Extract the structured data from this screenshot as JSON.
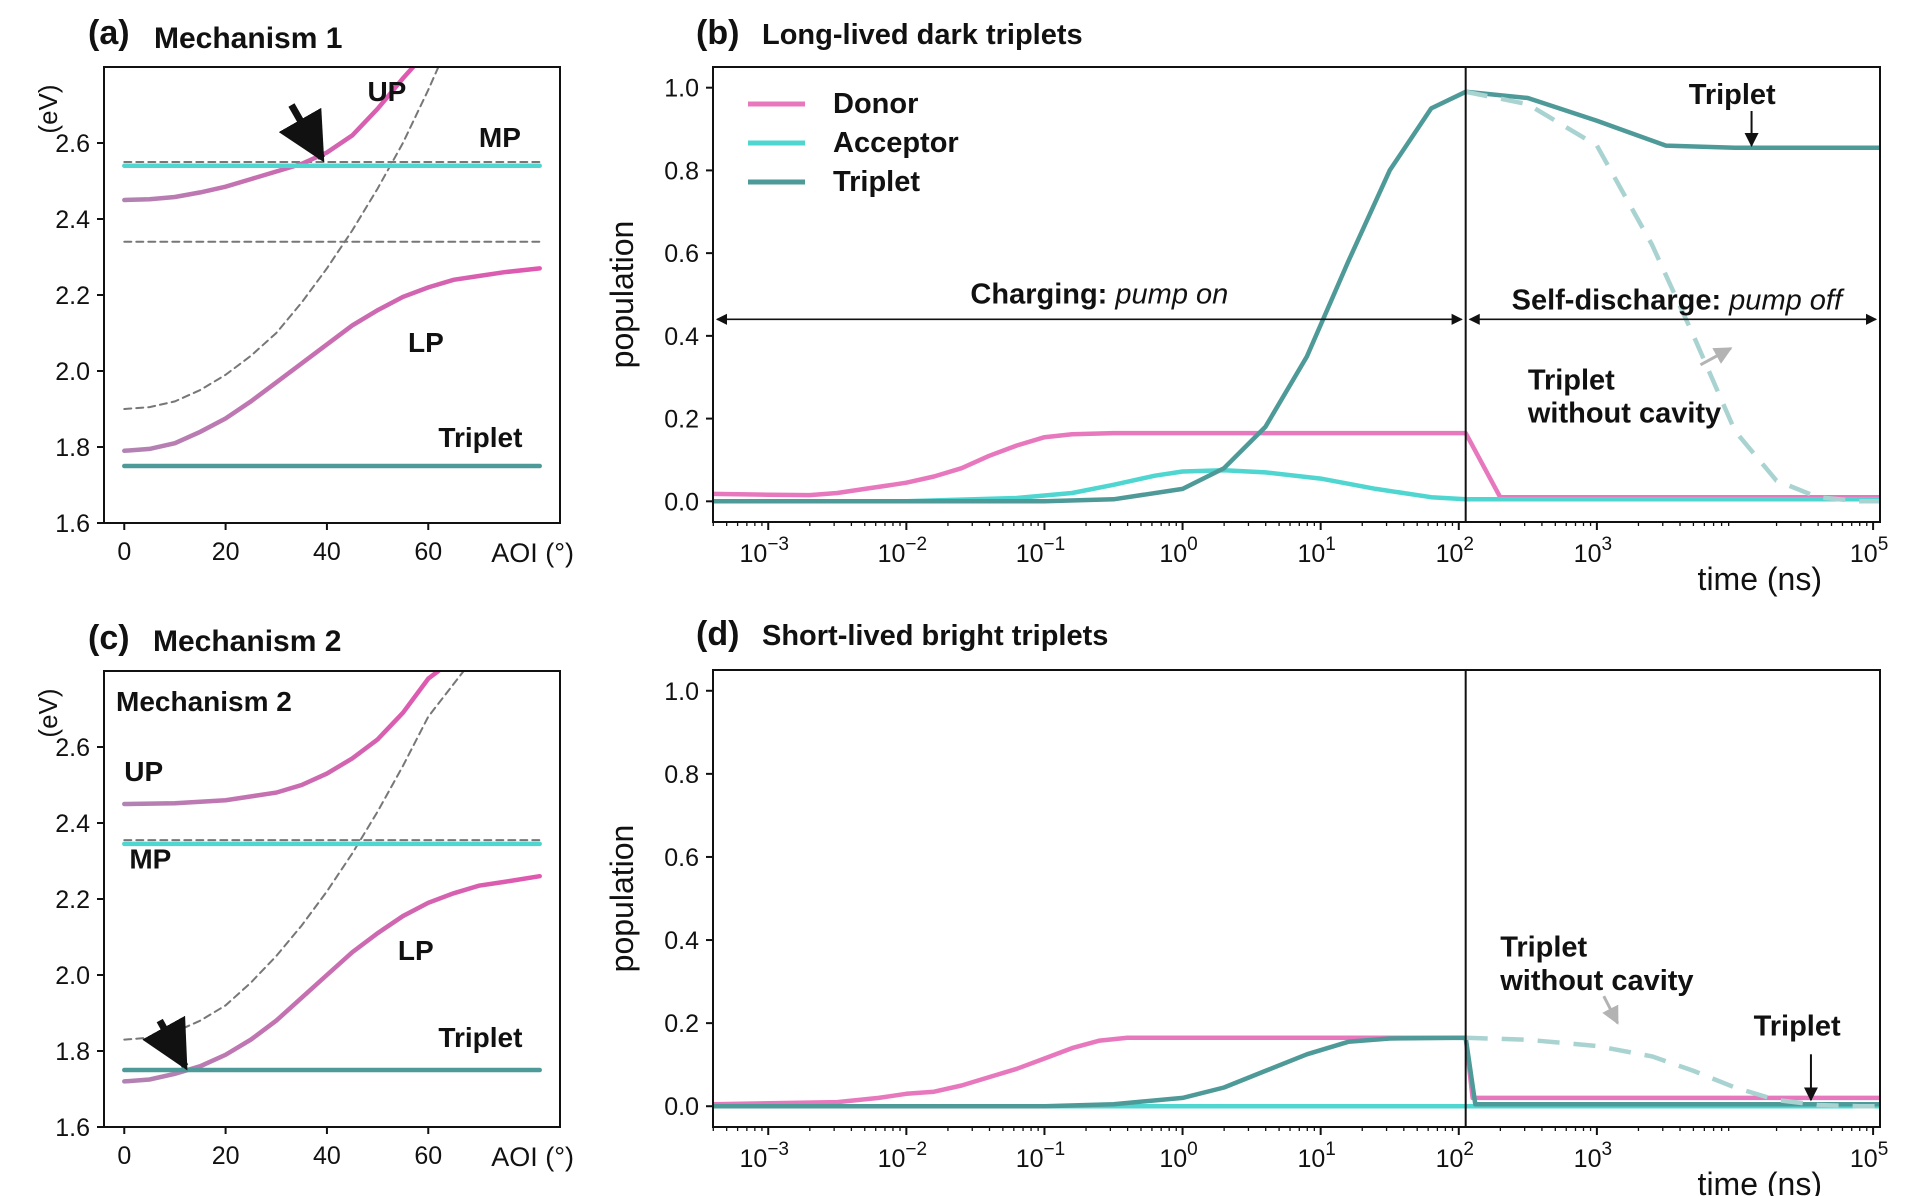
{
  "chart_data": [
    {
      "id": "a",
      "type": "line",
      "panel_label": "(a)",
      "title": "Mechanism 1",
      "xlabel": "AOI (°)",
      "ylabel": "(eV)",
      "xlim": [
        -4,
        86
      ],
      "ylim": [
        1.6,
        2.8
      ],
      "xticks": [
        0,
        20,
        40,
        60
      ],
      "yticks": [
        1.6,
        1.8,
        2.0,
        2.2,
        2.4,
        2.6
      ],
      "series": [
        {
          "name": "UP",
          "style": "pink-purple",
          "x": [
            0,
            5,
            10,
            15,
            20,
            25,
            30,
            35,
            40,
            45,
            50,
            55,
            57
          ],
          "y": [
            2.45,
            2.452,
            2.458,
            2.47,
            2.485,
            2.505,
            2.525,
            2.545,
            2.575,
            2.62,
            2.69,
            2.77,
            2.8
          ]
        },
        {
          "name": "MP",
          "style": "cyan",
          "x": [
            0,
            82
          ],
          "y": [
            2.54,
            2.54
          ]
        },
        {
          "name": "LP",
          "style": "pink-purple",
          "x": [
            0,
            5,
            10,
            15,
            20,
            25,
            30,
            35,
            40,
            45,
            50,
            55,
            60,
            65,
            70,
            75,
            82
          ],
          "y": [
            1.79,
            1.795,
            1.81,
            1.84,
            1.875,
            1.92,
            1.97,
            2.02,
            2.07,
            2.12,
            2.16,
            2.195,
            2.22,
            2.24,
            2.25,
            2.26,
            2.27
          ]
        },
        {
          "name": "Triplet",
          "style": "teal",
          "x": [
            0,
            82
          ],
          "y": [
            1.75,
            1.75
          ]
        },
        {
          "name": "cavity",
          "style": "dashed",
          "x": [
            0,
            5,
            10,
            15,
            20,
            25,
            30,
            35,
            40,
            45,
            50,
            55,
            60,
            62
          ],
          "y": [
            1.9,
            1.905,
            1.92,
            1.95,
            1.99,
            2.04,
            2.1,
            2.18,
            2.27,
            2.37,
            2.48,
            2.6,
            2.74,
            2.8
          ]
        },
        {
          "name": "exciton-1",
          "style": "dashed",
          "x": [
            0,
            82
          ],
          "y": [
            2.55,
            2.55
          ]
        },
        {
          "name": "exciton-2",
          "style": "dashed",
          "x": [
            0,
            82
          ],
          "y": [
            2.34,
            2.34
          ]
        }
      ],
      "annotations": [
        {
          "text": "UP",
          "x": 48,
          "y": 2.71
        },
        {
          "text": "MP",
          "x": 70,
          "y": 2.59
        },
        {
          "text": "LP",
          "x": 56,
          "y": 2.05
        },
        {
          "text": "Triplet",
          "x": 62,
          "y": 1.8
        }
      ],
      "arrow": {
        "from": [
          33,
          2.7
        ],
        "to": [
          39,
          2.56
        ]
      }
    },
    {
      "id": "b",
      "type": "line",
      "panel_label": "(b)",
      "title": "Long-lived dark triplets",
      "xlabel": "time (ns)",
      "ylabel": "population",
      "xscale": "log",
      "xlim_log10": [
        -3.4,
        5.05
      ],
      "ylim": [
        -0.05,
        1.05
      ],
      "xtick_labels": [
        "10",
        "10",
        "10",
        "10",
        "10",
        "10",
        "10",
        "10",
        "10"
      ],
      "xtick_exponents": [
        "−3",
        "−2",
        "−1",
        "0",
        "1",
        "2",
        "3",
        "",
        "5"
      ],
      "xtick_log10": [
        -3,
        -2,
        -1,
        0,
        1,
        2,
        3,
        null,
        5
      ],
      "yticks": [
        0.0,
        0.2,
        0.4,
        0.6,
        0.8,
        1.0
      ],
      "ytick_labels": [
        "0.0",
        "0.2",
        "0.4",
        "0.6",
        "0.8",
        "1.0"
      ],
      "pump_off_log10": 2.05,
      "legend": [
        "Donor",
        "Acceptor",
        "Triplet"
      ],
      "series": [
        {
          "name": "Donor",
          "color": "#e878bd",
          "x_log10": [
            -3.4,
            -3.0,
            -2.7,
            -2.5,
            -2.3,
            -2.1,
            -2.0,
            -1.8,
            -1.6,
            -1.4,
            -1.2,
            -1.0,
            -0.8,
            -0.5,
            0.0,
            1.0,
            2.05,
            2.3,
            2.6,
            3.5,
            5.05
          ],
          "y": [
            0.018,
            0.016,
            0.015,
            0.02,
            0.03,
            0.04,
            0.045,
            0.06,
            0.08,
            0.11,
            0.135,
            0.155,
            0.162,
            0.165,
            0.165,
            0.165,
            0.165,
            0.01,
            0.01,
            0.01,
            0.01
          ]
        },
        {
          "name": "Acceptor",
          "color": "#4fd6d0",
          "x_log10": [
            -3.4,
            -2.0,
            -1.2,
            -0.8,
            -0.5,
            -0.2,
            0.0,
            0.3,
            0.6,
            1.0,
            1.4,
            1.8,
            2.05,
            3.0,
            5.05
          ],
          "y": [
            0.0,
            0.0,
            0.008,
            0.02,
            0.04,
            0.062,
            0.072,
            0.075,
            0.07,
            0.055,
            0.03,
            0.01,
            0.005,
            0.005,
            0.005
          ]
        },
        {
          "name": "Triplet",
          "color": "#4e9a98",
          "x_log10": [
            -3.4,
            -1.0,
            -0.5,
            0.0,
            0.3,
            0.6,
            0.9,
            1.2,
            1.5,
            1.8,
            2.05,
            2.5,
            3.0,
            3.5,
            4.0,
            5.05
          ],
          "y": [
            0.0,
            0.0,
            0.005,
            0.03,
            0.08,
            0.18,
            0.35,
            0.58,
            0.8,
            0.95,
            0.99,
            0.975,
            0.92,
            0.86,
            0.855,
            0.855
          ]
        },
        {
          "name": "Triplet without cavity",
          "color": "#a9d3d1",
          "dashed": true,
          "x_log10": [
            2.05,
            2.5,
            3.0,
            3.4,
            3.7,
            4.0,
            4.3,
            4.6,
            4.9,
            5.05
          ],
          "y": [
            0.99,
            0.96,
            0.86,
            0.62,
            0.4,
            0.17,
            0.05,
            0.01,
            0.0,
            0.0
          ]
        }
      ],
      "annotations": [
        {
          "text_bold": "Charging:",
          "text_italic": " pump on"
        },
        {
          "text_bold": "Self-discharge:",
          "text_italic": " pump off"
        },
        {
          "text": "Triplet"
        },
        {
          "text_lines": [
            "Triplet",
            "without cavity"
          ]
        }
      ]
    },
    {
      "id": "c",
      "type": "line",
      "panel_label": "(c)",
      "title": "Mechanism 2",
      "inner_label": "Mechanism 2",
      "xlabel": "AOI (°)",
      "ylabel": "(eV)",
      "xlim": [
        -4,
        86
      ],
      "ylim": [
        1.6,
        2.8
      ],
      "xticks": [
        0,
        20,
        40,
        60
      ],
      "yticks": [
        1.6,
        1.8,
        2.0,
        2.2,
        2.4,
        2.6
      ],
      "series": [
        {
          "name": "UP",
          "style": "pink-purple",
          "x": [
            0,
            10,
            20,
            30,
            35,
            40,
            45,
            50,
            55,
            60,
            62
          ],
          "y": [
            2.45,
            2.452,
            2.46,
            2.48,
            2.5,
            2.53,
            2.57,
            2.62,
            2.69,
            2.78,
            2.8
          ]
        },
        {
          "name": "MP",
          "style": "cyan",
          "x": [
            0,
            82
          ],
          "y": [
            2.345,
            2.345
          ]
        },
        {
          "name": "LP",
          "style": "pink-purple",
          "x": [
            0,
            5,
            10,
            15,
            20,
            25,
            30,
            35,
            40,
            45,
            50,
            55,
            60,
            65,
            70,
            75,
            82
          ],
          "y": [
            1.72,
            1.725,
            1.74,
            1.76,
            1.79,
            1.83,
            1.88,
            1.94,
            2.0,
            2.06,
            2.11,
            2.155,
            2.19,
            2.215,
            2.235,
            2.245,
            2.26
          ]
        },
        {
          "name": "Triplet",
          "style": "teal",
          "x": [
            0,
            82
          ],
          "y": [
            1.75,
            1.75
          ]
        },
        {
          "name": "cavity",
          "style": "dashed",
          "x": [
            0,
            5,
            10,
            15,
            20,
            25,
            30,
            35,
            40,
            45,
            50,
            55,
            60,
            67
          ],
          "y": [
            1.83,
            1.835,
            1.85,
            1.88,
            1.92,
            1.98,
            2.05,
            2.13,
            2.22,
            2.32,
            2.43,
            2.55,
            2.68,
            2.8
          ]
        },
        {
          "name": "exciton",
          "style": "dashed",
          "x": [
            0,
            82
          ],
          "y": [
            2.355,
            2.355
          ]
        }
      ],
      "annotations": [
        {
          "text": "UP",
          "x": 0,
          "y": 2.51
        },
        {
          "text": "MP",
          "x": 1,
          "y": 2.28
        },
        {
          "text": "LP",
          "x": 54,
          "y": 2.04
        },
        {
          "text": "Triplet",
          "x": 62,
          "y": 1.81
        }
      ],
      "arrow": {
        "from": [
          7,
          1.88
        ],
        "to": [
          12,
          1.76
        ]
      }
    },
    {
      "id": "d",
      "type": "line",
      "panel_label": "(d)",
      "title": "Short-lived bright triplets",
      "xlabel": "time (ns)",
      "ylabel": "population",
      "xscale": "log",
      "xlim_log10": [
        -3.4,
        5.05
      ],
      "ylim": [
        -0.05,
        1.05
      ],
      "xtick_labels": [
        "10",
        "10",
        "10",
        "10",
        "10",
        "10",
        "10",
        "10",
        "10"
      ],
      "xtick_exponents": [
        "−3",
        "−2",
        "−1",
        "0",
        "1",
        "2",
        "3",
        "",
        "5"
      ],
      "xtick_log10": [
        -3,
        -2,
        -1,
        0,
        1,
        2,
        3,
        null,
        5
      ],
      "yticks": [
        0.0,
        0.2,
        0.4,
        0.6,
        0.8,
        1.0
      ],
      "ytick_labels": [
        "0.0",
        "0.2",
        "0.4",
        "0.6",
        "0.8",
        "1.0"
      ],
      "pump_off_log10": 2.05,
      "series": [
        {
          "name": "Donor",
          "color": "#e878bd",
          "x_log10": [
            -3.4,
            -2.5,
            -2.2,
            -2.0,
            -1.8,
            -1.6,
            -1.4,
            -1.2,
            -1.0,
            -0.8,
            -0.6,
            -0.4,
            -0.2,
            0.0,
            1.0,
            2.05,
            2.1,
            3.0,
            5.05
          ],
          "y": [
            0.005,
            0.01,
            0.02,
            0.03,
            0.035,
            0.05,
            0.07,
            0.09,
            0.115,
            0.14,
            0.158,
            0.165,
            0.165,
            0.165,
            0.165,
            0.165,
            0.02,
            0.02,
            0.02
          ]
        },
        {
          "name": "Acceptor",
          "color": "#4fd6d0",
          "x_log10": [
            -3.4,
            5.05
          ],
          "y": [
            0.0,
            0.0
          ]
        },
        {
          "name": "Triplet",
          "color": "#4e9a98",
          "x_log10": [
            -3.4,
            -1.0,
            -0.5,
            0.0,
            0.3,
            0.6,
            0.9,
            1.2,
            1.5,
            2.05,
            2.12,
            3.0,
            5.05
          ],
          "y": [
            0.0,
            0.0,
            0.005,
            0.02,
            0.045,
            0.085,
            0.125,
            0.155,
            0.163,
            0.165,
            0.005,
            0.005,
            0.005
          ]
        },
        {
          "name": "Triplet without cavity",
          "color": "#a9d3d1",
          "dashed": true,
          "x_log10": [
            2.05,
            2.5,
            3.0,
            3.4,
            3.7,
            4.0,
            4.3,
            4.6,
            4.9,
            5.05
          ],
          "y": [
            0.165,
            0.16,
            0.145,
            0.12,
            0.085,
            0.045,
            0.015,
            0.003,
            0.0,
            0.0
          ]
        }
      ],
      "annotations": [
        {
          "text": "Triplet"
        },
        {
          "text_lines": [
            "Triplet",
            "without cavity"
          ]
        }
      ]
    }
  ],
  "colors": {
    "donor": "#e878bd",
    "acceptor": "#4fd6d0",
    "triplet": "#4e9a98",
    "triplet_no_cavity": "#a9d3d1",
    "polariton": "#d46fb0",
    "gray_text": "#b3b3b3"
  }
}
